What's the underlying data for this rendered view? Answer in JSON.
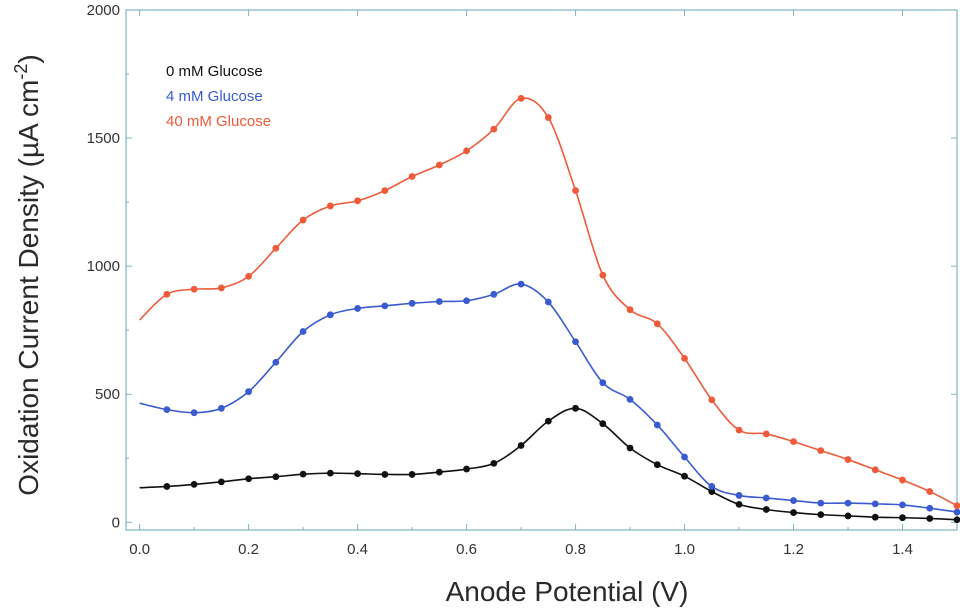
{
  "chart_data": {
    "type": "line",
    "title": "",
    "xlabel": "Anode Potential (V)",
    "ylabel": "Oxidation Current Density (µA cm",
    "ylabel_sup": "-2",
    "ylabel_close": ")",
    "xlim": [
      -0.025,
      1.5
    ],
    "ylim": [
      -30,
      2000
    ],
    "x_ticks": [
      "0.0",
      "0.2",
      "0.4",
      "0.6",
      "0.8",
      "1.0",
      "1.2",
      "1.4"
    ],
    "x_tick_values": [
      0.0,
      0.2,
      0.4,
      0.6,
      0.8,
      1.0,
      1.2,
      1.4
    ],
    "y_ticks": [
      "0",
      "500",
      "1000",
      "1500",
      "2000"
    ],
    "y_tick_values": [
      0,
      500,
      1000,
      1500,
      2000
    ],
    "grid": false,
    "legend_position": "top-left",
    "colors": {
      "axis": "#7fb3c8",
      "series_0": "#111111",
      "series_1": "#3a5bd0",
      "series_2": "#ee5a3a"
    },
    "series": [
      {
        "name": "0 mM Glucose",
        "color": "#111111",
        "x": [
          0.0,
          0.05,
          0.1,
          0.15,
          0.2,
          0.25,
          0.3,
          0.35,
          0.4,
          0.45,
          0.5,
          0.55,
          0.6,
          0.65,
          0.7,
          0.75,
          0.8,
          0.85,
          0.9,
          0.95,
          1.0,
          1.05,
          1.1,
          1.15,
          1.2,
          1.25,
          1.3,
          1.35,
          1.4,
          1.45,
          1.5
        ],
        "y": [
          135,
          140,
          148,
          158,
          170,
          178,
          188,
          192,
          190,
          187,
          187,
          196,
          208,
          230,
          300,
          395,
          445,
          385,
          290,
          225,
          180,
          120,
          70,
          50,
          38,
          30,
          25,
          20,
          18,
          15,
          10
        ],
        "markers": [
          false,
          true,
          true,
          true,
          true,
          true,
          true,
          true,
          true,
          true,
          true,
          true,
          true,
          true,
          true,
          true,
          true,
          true,
          true,
          true,
          true,
          true,
          true,
          true,
          true,
          true,
          true,
          true,
          true,
          true,
          true
        ]
      },
      {
        "name": "4 mM Glucose",
        "color": "#3a5bd0",
        "x": [
          0.0,
          0.05,
          0.1,
          0.15,
          0.2,
          0.25,
          0.3,
          0.35,
          0.4,
          0.45,
          0.5,
          0.55,
          0.6,
          0.65,
          0.7,
          0.75,
          0.8,
          0.85,
          0.9,
          0.95,
          1.0,
          1.05,
          1.1,
          1.15,
          1.2,
          1.25,
          1.3,
          1.35,
          1.4,
          1.45,
          1.5
        ],
        "y": [
          465,
          440,
          428,
          445,
          510,
          625,
          745,
          810,
          835,
          845,
          855,
          862,
          865,
          890,
          930,
          860,
          705,
          545,
          480,
          380,
          255,
          140,
          105,
          95,
          85,
          75,
          75,
          72,
          68,
          55,
          40
        ],
        "markers": [
          false,
          true,
          true,
          true,
          true,
          true,
          true,
          true,
          true,
          true,
          true,
          true,
          true,
          true,
          true,
          true,
          true,
          true,
          true,
          true,
          true,
          true,
          true,
          true,
          true,
          true,
          true,
          true,
          true,
          true,
          true
        ]
      },
      {
        "name": "40 mM Glucose",
        "color": "#ee5a3a",
        "x": [
          0.0,
          0.05,
          0.1,
          0.15,
          0.2,
          0.25,
          0.3,
          0.35,
          0.4,
          0.45,
          0.5,
          0.55,
          0.6,
          0.65,
          0.7,
          0.75,
          0.8,
          0.85,
          0.9,
          0.95,
          1.0,
          1.05,
          1.1,
          1.15,
          1.2,
          1.25,
          1.3,
          1.35,
          1.4,
          1.45,
          1.5
        ],
        "y": [
          790,
          890,
          910,
          915,
          960,
          1070,
          1180,
          1235,
          1255,
          1295,
          1350,
          1395,
          1450,
          1535,
          1655,
          1580,
          1295,
          965,
          830,
          775,
          640,
          478,
          360,
          345,
          315,
          280,
          245,
          205,
          165,
          120,
          65
        ],
        "markers": [
          false,
          true,
          true,
          true,
          true,
          true,
          true,
          true,
          true,
          true,
          true,
          true,
          true,
          true,
          true,
          true,
          true,
          true,
          true,
          true,
          true,
          true,
          true,
          true,
          true,
          true,
          true,
          true,
          true,
          true,
          true
        ]
      }
    ]
  }
}
